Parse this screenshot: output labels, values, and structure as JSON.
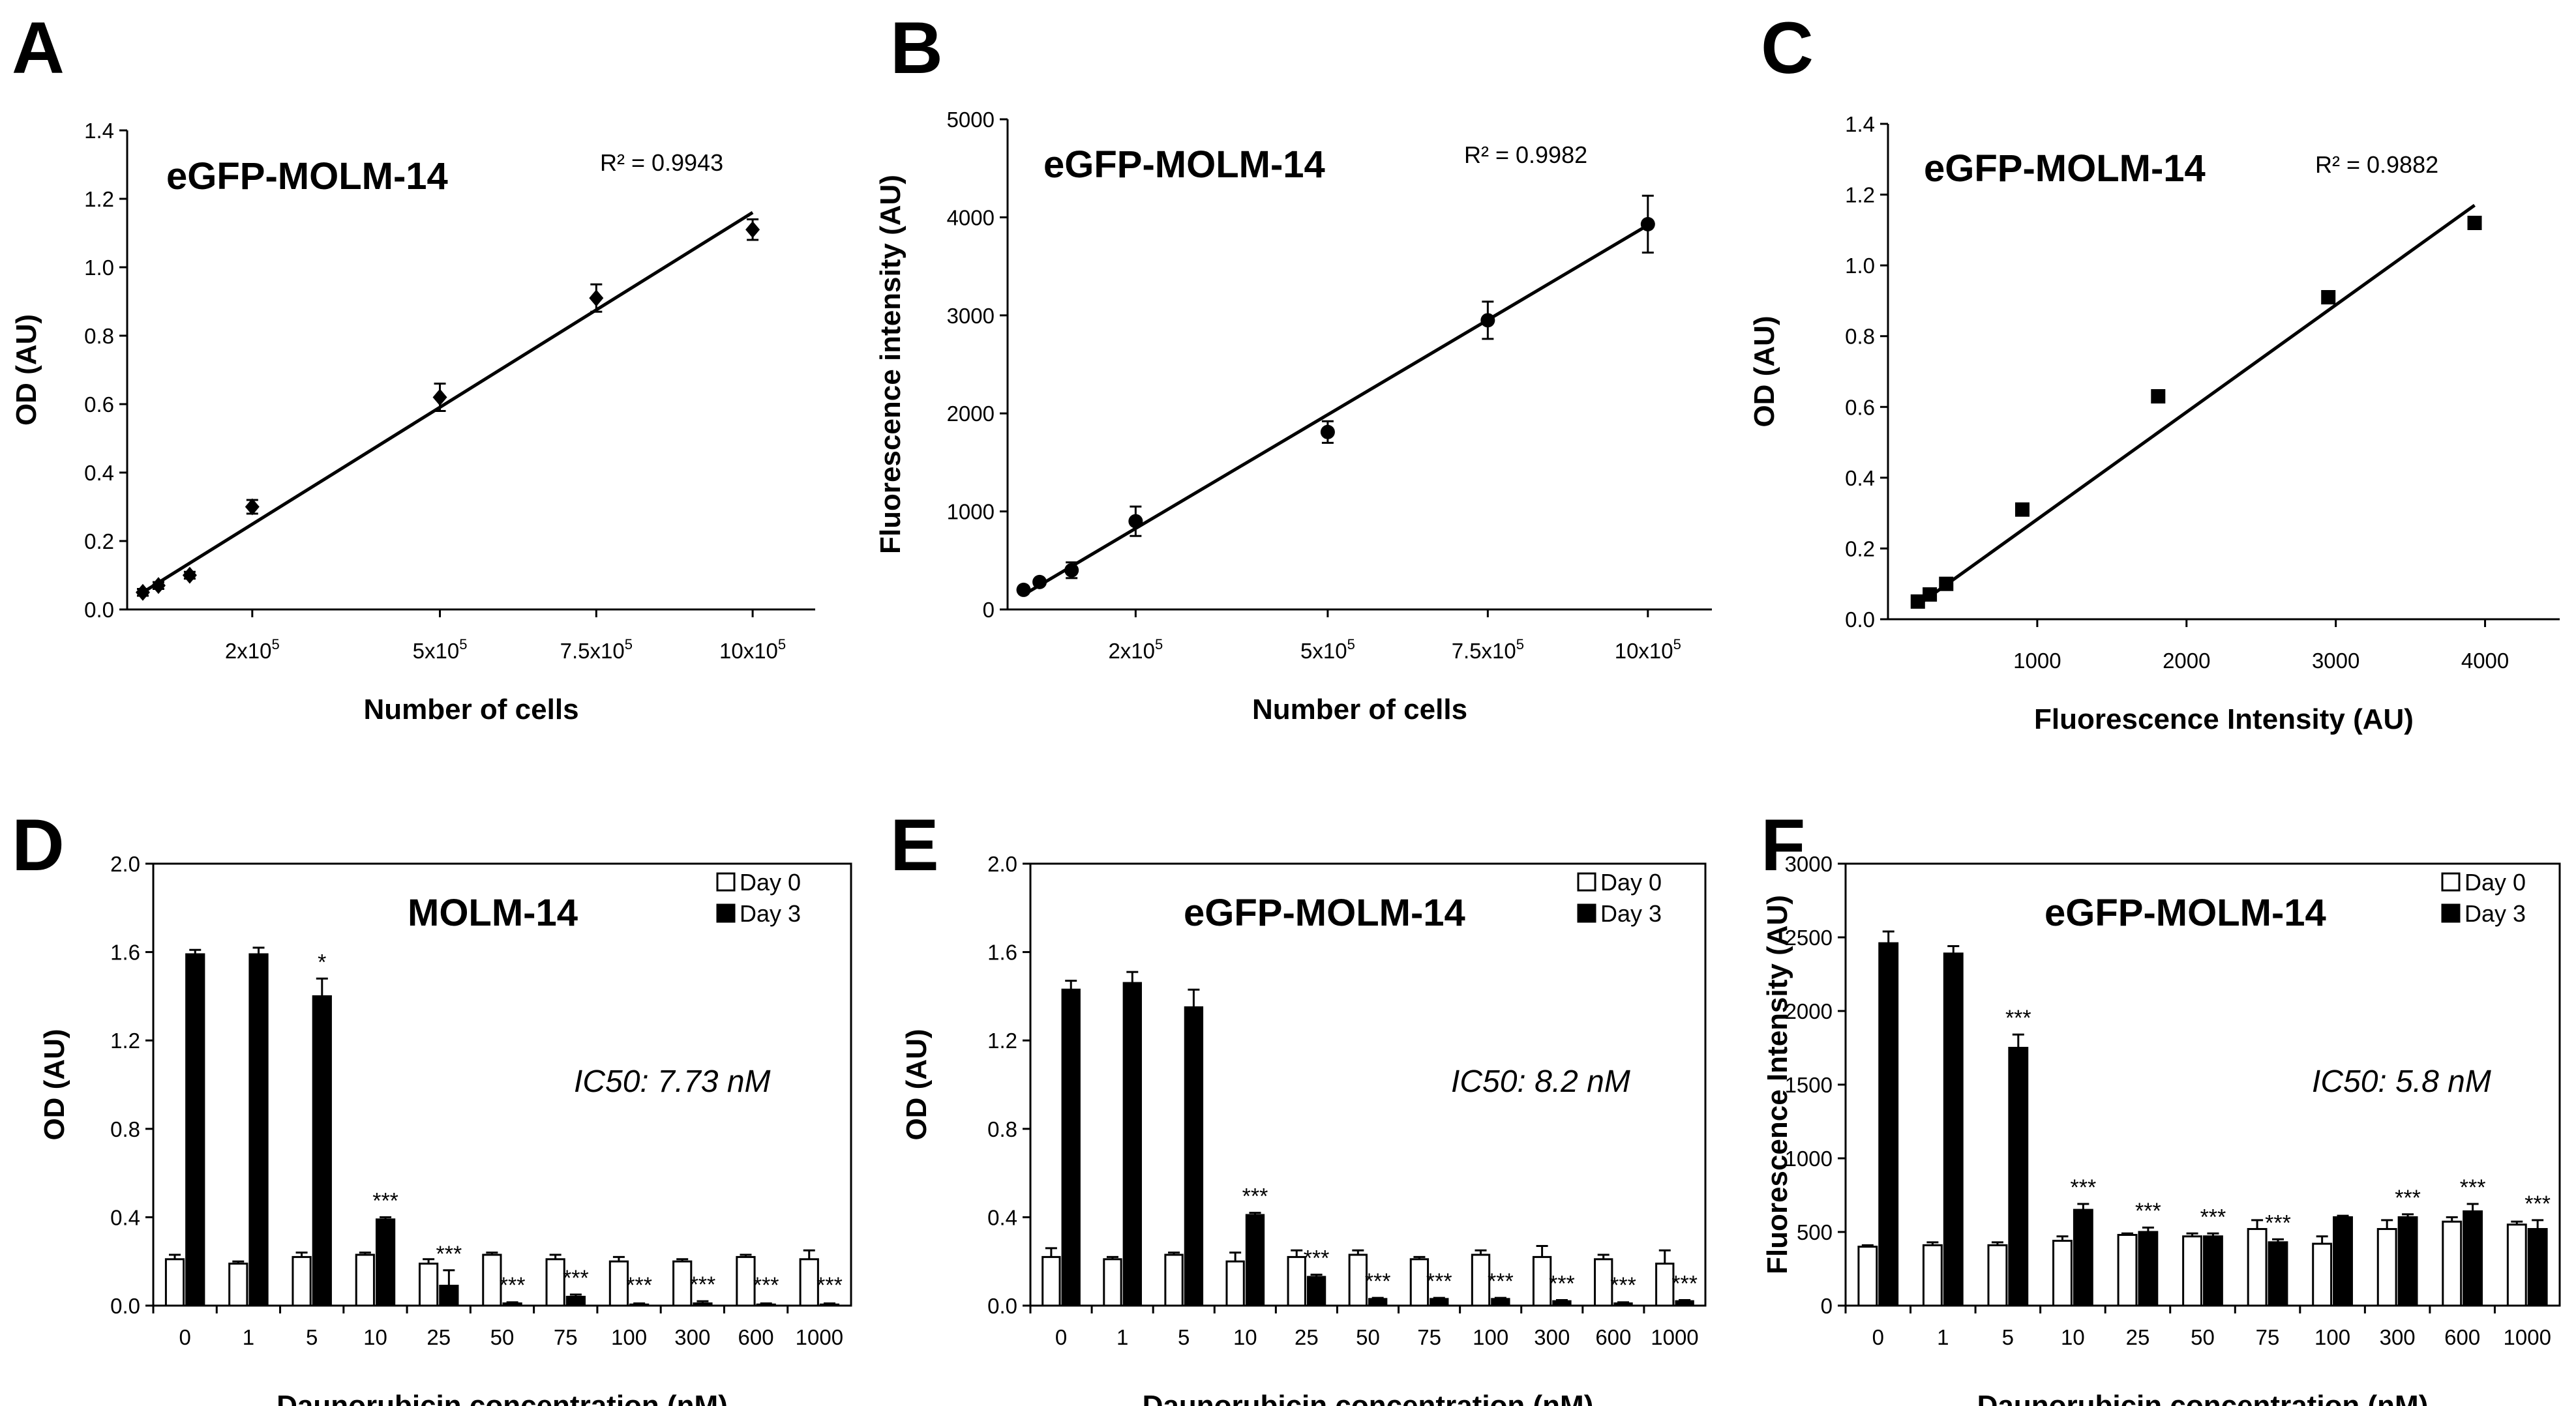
{
  "chart_data": [
    {
      "panel": "A",
      "type": "scatter",
      "title": "eGFP-MOLM-14",
      "annotation": "R² = 0.9943",
      "xlabel": "Number of cells",
      "ylabel": "OD  (AU)",
      "xlim": [
        0,
        1100000
      ],
      "ylim": [
        0,
        1.4
      ],
      "yticks": [
        "0.0",
        "0.2",
        "0.4",
        "0.6",
        "0.8",
        "1.0",
        "1.2",
        "1.4"
      ],
      "xtick_values": [
        200000,
        500000,
        750000,
        1000000
      ],
      "xtick_labels": [
        [
          "2x10",
          "5"
        ],
        [
          "5x10",
          "5"
        ],
        [
          "7.5x10",
          "5"
        ],
        [
          "10x10",
          "5"
        ]
      ],
      "marker": "diamond",
      "points": [
        {
          "x": 25000,
          "y": 0.05,
          "err": 0.01
        },
        {
          "x": 50000,
          "y": 0.07,
          "err": 0.01
        },
        {
          "x": 100000,
          "y": 0.1,
          "err": 0.01
        },
        {
          "x": 200000,
          "y": 0.3,
          "err": 0.02
        },
        {
          "x": 500000,
          "y": 0.62,
          "err": 0.04
        },
        {
          "x": 750000,
          "y": 0.91,
          "err": 0.04
        },
        {
          "x": 1000000,
          "y": 1.11,
          "err": 0.03
        }
      ],
      "fit_line": [
        [
          25000,
          0.05
        ],
        [
          1000000,
          1.16
        ]
      ]
    },
    {
      "panel": "B",
      "type": "scatter",
      "title": "eGFP-MOLM-14",
      "annotation": "R² = 0.9982",
      "xlabel": "Number of cells",
      "ylabel": "Fluorescence  intensity  (AU)",
      "xlim": [
        0,
        1100000
      ],
      "ylim": [
        0,
        5000
      ],
      "yticks": [
        "0",
        "1000",
        "2000",
        "3000",
        "4000",
        "5000"
      ],
      "xtick_values": [
        200000,
        500000,
        750000,
        1000000
      ],
      "xtick_labels": [
        [
          "2x10",
          "5"
        ],
        [
          "5x10",
          "5"
        ],
        [
          "7.5x10",
          "5"
        ],
        [
          "10x10",
          "5"
        ]
      ],
      "marker": "circle",
      "points": [
        {
          "x": 25000,
          "y": 200,
          "err": 20
        },
        {
          "x": 50000,
          "y": 280,
          "err": 30
        },
        {
          "x": 100000,
          "y": 400,
          "err": 80
        },
        {
          "x": 200000,
          "y": 900,
          "err": 150
        },
        {
          "x": 500000,
          "y": 1810,
          "err": 110
        },
        {
          "x": 750000,
          "y": 2950,
          "err": 190
        },
        {
          "x": 1000000,
          "y": 3930,
          "err": 290
        }
      ],
      "fit_line": [
        [
          25000,
          150
        ],
        [
          1000000,
          3920
        ]
      ]
    },
    {
      "panel": "C",
      "type": "scatter",
      "title": "eGFP-MOLM-14",
      "annotation": "R² = 0.9882",
      "xlabel": "Fluorescence Intensity (AU)",
      "ylabel": "OD  (AU)",
      "xlim": [
        0,
        4500
      ],
      "ylim": [
        0,
        1.4
      ],
      "yticks": [
        "0.0",
        "0.2",
        "0.4",
        "0.6",
        "0.8",
        "1.0",
        "1.2",
        "1.4"
      ],
      "xtick_values": [
        1000,
        2000,
        3000,
        4000
      ],
      "xtick_labels": [
        [
          "1000",
          ""
        ],
        [
          "2000",
          ""
        ],
        [
          "3000",
          ""
        ],
        [
          "4000",
          ""
        ]
      ],
      "marker": "square",
      "points": [
        {
          "x": 200,
          "y": 0.05,
          "err": 0
        },
        {
          "x": 280,
          "y": 0.07,
          "err": 0
        },
        {
          "x": 390,
          "y": 0.1,
          "err": 0
        },
        {
          "x": 900,
          "y": 0.31,
          "err": 0
        },
        {
          "x": 1810,
          "y": 0.63,
          "err": 0
        },
        {
          "x": 2950,
          "y": 0.91,
          "err": 0
        },
        {
          "x": 3930,
          "y": 1.12,
          "err": 0
        }
      ],
      "fit_line": [
        [
          200,
          0.04
        ],
        [
          3930,
          1.17
        ]
      ]
    },
    {
      "panel": "D",
      "type": "bar",
      "title": "MOLM-14",
      "annotation": "IC50: 7.73 nM",
      "xlabel": "Daunorubicin concentration (nM)",
      "ylabel": "OD  (AU)",
      "categories": [
        "0",
        "1",
        "5",
        "10",
        "25",
        "50",
        "75",
        "100",
        "300",
        "600",
        "1000"
      ],
      "ylim": [
        0,
        2.0
      ],
      "yticks": [
        "0.0",
        "0.4",
        "0.8",
        "1.2",
        "1.6",
        "2.0"
      ],
      "legend": [
        "Day 0",
        "Day 3"
      ],
      "series": [
        {
          "name": "Day 0",
          "values": [
            0.21,
            0.19,
            0.22,
            0.23,
            0.19,
            0.23,
            0.21,
            0.2,
            0.2,
            0.22,
            0.21
          ],
          "errors": [
            0.02,
            0.01,
            0.02,
            0.01,
            0.02,
            0.01,
            0.02,
            0.02,
            0.01,
            0.01,
            0.04
          ]
        },
        {
          "name": "Day 3",
          "values": [
            1.59,
            1.59,
            1.4,
            0.39,
            0.09,
            0.01,
            0.04,
            0.005,
            0.01,
            0.005,
            0.005
          ],
          "errors": [
            0.02,
            0.03,
            0.08,
            0.01,
            0.07,
            0.005,
            0.01,
            0.005,
            0.01,
            0.005,
            0.005
          ]
        }
      ],
      "significance": [
        "",
        "",
        "*",
        "***",
        "***",
        "***",
        "***",
        "***",
        "***",
        "***",
        "***"
      ]
    },
    {
      "panel": "E",
      "type": "bar",
      "title": "eGFP-MOLM-14",
      "annotation": "IC50: 8.2 nM",
      "xlabel": "Daunorubicin concentration (nM)",
      "ylabel": "OD  (AU)",
      "categories": [
        "0",
        "1",
        "5",
        "10",
        "25",
        "50",
        "75",
        "100",
        "300",
        "600",
        "1000"
      ],
      "ylim": [
        0,
        2.0
      ],
      "yticks": [
        "0.0",
        "0.4",
        "0.8",
        "1.2",
        "1.6",
        "2.0"
      ],
      "legend": [
        "Day 0",
        "Day 3"
      ],
      "series": [
        {
          "name": "Day 0",
          "values": [
            0.22,
            0.21,
            0.23,
            0.2,
            0.22,
            0.23,
            0.21,
            0.23,
            0.22,
            0.21,
            0.19
          ],
          "errors": [
            0.04,
            0.01,
            0.01,
            0.04,
            0.03,
            0.02,
            0.01,
            0.02,
            0.05,
            0.02,
            0.06
          ]
        },
        {
          "name": "Day 3",
          "values": [
            1.43,
            1.46,
            1.35,
            0.41,
            0.13,
            0.03,
            0.03,
            0.03,
            0.02,
            0.01,
            0.02
          ],
          "errors": [
            0.04,
            0.05,
            0.08,
            0.01,
            0.01,
            0.005,
            0.005,
            0.005,
            0.005,
            0.005,
            0.005
          ]
        }
      ],
      "significance": [
        "",
        "",
        "",
        "***",
        "***",
        "***",
        "***",
        "***",
        "***",
        "***",
        "***"
      ]
    },
    {
      "panel": "F",
      "type": "bar",
      "title": "eGFP-MOLM-14",
      "annotation": "IC50: 5.8 nM",
      "xlabel": "Daunorubicin concentration (nM)",
      "ylabel": "Fluorescence      Intensity  (AU)",
      "categories": [
        "0",
        "1",
        "5",
        "10",
        "25",
        "50",
        "75",
        "100",
        "300",
        "600",
        "1000"
      ],
      "ylim": [
        0,
        3000
      ],
      "yticks": [
        "0",
        "500",
        "1000",
        "1500",
        "2000",
        "2500",
        "3000"
      ],
      "legend": [
        "Day 0",
        "Day 3"
      ],
      "series": [
        {
          "name": "Day 0",
          "values": [
            400,
            410,
            410,
            440,
            480,
            470,
            520,
            420,
            520,
            570,
            550
          ],
          "errors": [
            10,
            20,
            20,
            30,
            10,
            20,
            60,
            50,
            60,
            30,
            20
          ]
        },
        {
          "name": "Day 3",
          "values": [
            2460,
            2390,
            1750,
            650,
            500,
            470,
            430,
            600,
            600,
            640,
            520
          ],
          "errors": [
            80,
            50,
            90,
            40,
            30,
            20,
            20,
            10,
            20,
            50,
            60
          ]
        }
      ],
      "significance": [
        "",
        "",
        "***",
        "***",
        "***",
        "***",
        "***",
        "",
        "***",
        "***",
        "***"
      ]
    }
  ]
}
